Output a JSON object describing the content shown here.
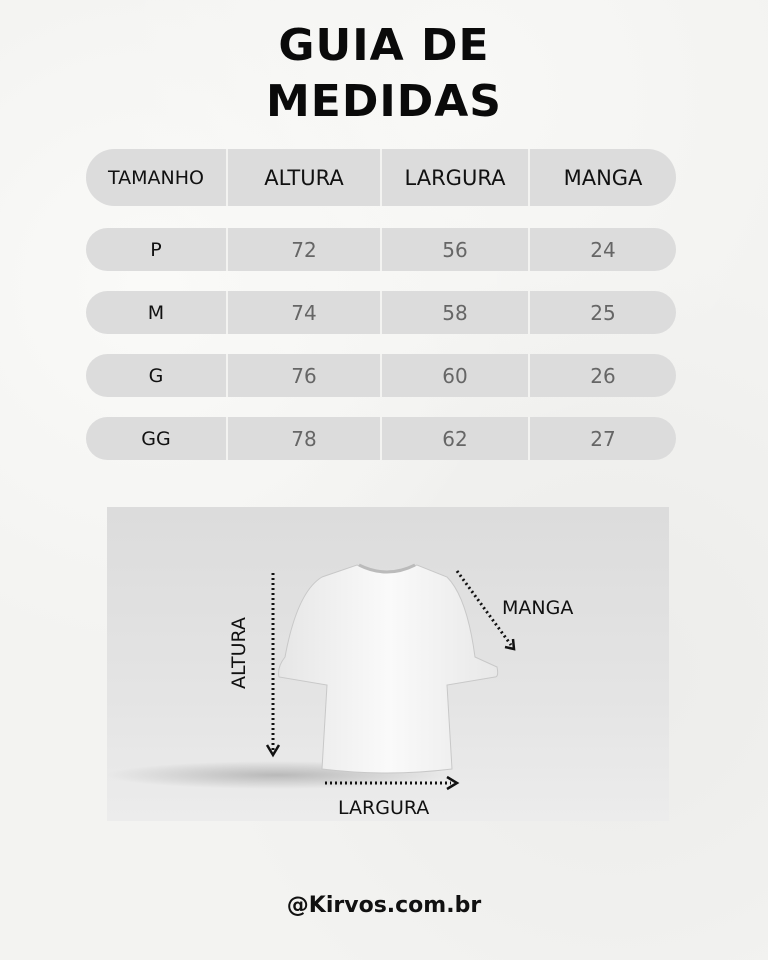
{
  "title_line1": "GUIA DE",
  "title_line2": "MEDIDAS",
  "table": {
    "headers": [
      "TAMANHO",
      "ALTURA",
      "LARGURA",
      "MANGA"
    ],
    "rows": [
      [
        "P",
        "72",
        "56",
        "24"
      ],
      [
        "M",
        "74",
        "58",
        "25"
      ],
      [
        "G",
        "76",
        "60",
        "26"
      ],
      [
        "GG",
        "78",
        "62",
        "27"
      ]
    ]
  },
  "diagram": {
    "altura_label": "ALTURA",
    "manga_label": "MANGA",
    "largura_label": "LARGURA"
  },
  "handle": "@Kirvos.com.br"
}
